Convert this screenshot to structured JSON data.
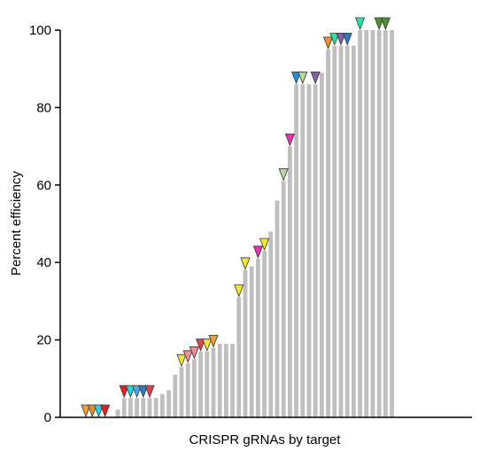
{
  "chart_data": {
    "type": "bar",
    "title": "",
    "xlabel": "CRISPR gRNAs by target",
    "ylabel": "Percent efficiency",
    "ylim": [
      0,
      100
    ],
    "yticks": [
      0,
      20,
      40,
      60,
      80,
      100
    ],
    "grid": false,
    "legend": "none",
    "bar_color": "#bfbfbf",
    "values": [
      0,
      0,
      0,
      0,
      0,
      2,
      5,
      5,
      5,
      5,
      5,
      5,
      6,
      7,
      11,
      13,
      14,
      15,
      17,
      17,
      18,
      19,
      19,
      19,
      31,
      38,
      39,
      41,
      43,
      48,
      56,
      61,
      70,
      86,
      86,
      86,
      86,
      89,
      95,
      96,
      96,
      96,
      96,
      100,
      100,
      100,
      100,
      100,
      100
    ],
    "markers": [
      {
        "index": 0,
        "color": "#f0a030"
      },
      {
        "index": 1,
        "color": "#e8902c"
      },
      {
        "index": 2,
        "color": "#22d8e8"
      },
      {
        "index": 3,
        "color": "#e81c24"
      },
      {
        "index": 6,
        "color": "#e81c24"
      },
      {
        "index": 7,
        "color": "#22d8e8"
      },
      {
        "index": 8,
        "color": "#4aa8e0"
      },
      {
        "index": 9,
        "color": "#2e7cc0"
      },
      {
        "index": 10,
        "color": "#e04050"
      },
      {
        "index": 15,
        "color": "#f5e830"
      },
      {
        "index": 16,
        "color": "#f09090"
      },
      {
        "index": 17,
        "color": "#f09090"
      },
      {
        "index": 18,
        "color": "#e04050"
      },
      {
        "index": 19,
        "color": "#f5e830"
      },
      {
        "index": 20,
        "color": "#f0a030"
      },
      {
        "index": 24,
        "color": "#f5e830"
      },
      {
        "index": 25,
        "color": "#f5e830"
      },
      {
        "index": 27,
        "color": "#e830b8"
      },
      {
        "index": 28,
        "color": "#f5e830"
      },
      {
        "index": 31,
        "color": "#b8d8a0"
      },
      {
        "index": 32,
        "color": "#e830b8"
      },
      {
        "index": 33,
        "color": "#2090d0"
      },
      {
        "index": 34,
        "color": "#b8d8a0"
      },
      {
        "index": 36,
        "color": "#8060a8"
      },
      {
        "index": 38,
        "color": "#f0902c"
      },
      {
        "index": 39,
        "color": "#22e8a0"
      },
      {
        "index": 40,
        "color": "#8060a8"
      },
      {
        "index": 41,
        "color": "#2e7cc0"
      },
      {
        "index": 43,
        "color": "#22e8a0"
      },
      {
        "index": 46,
        "color": "#509030"
      },
      {
        "index": 47,
        "color": "#509030"
      }
    ]
  }
}
